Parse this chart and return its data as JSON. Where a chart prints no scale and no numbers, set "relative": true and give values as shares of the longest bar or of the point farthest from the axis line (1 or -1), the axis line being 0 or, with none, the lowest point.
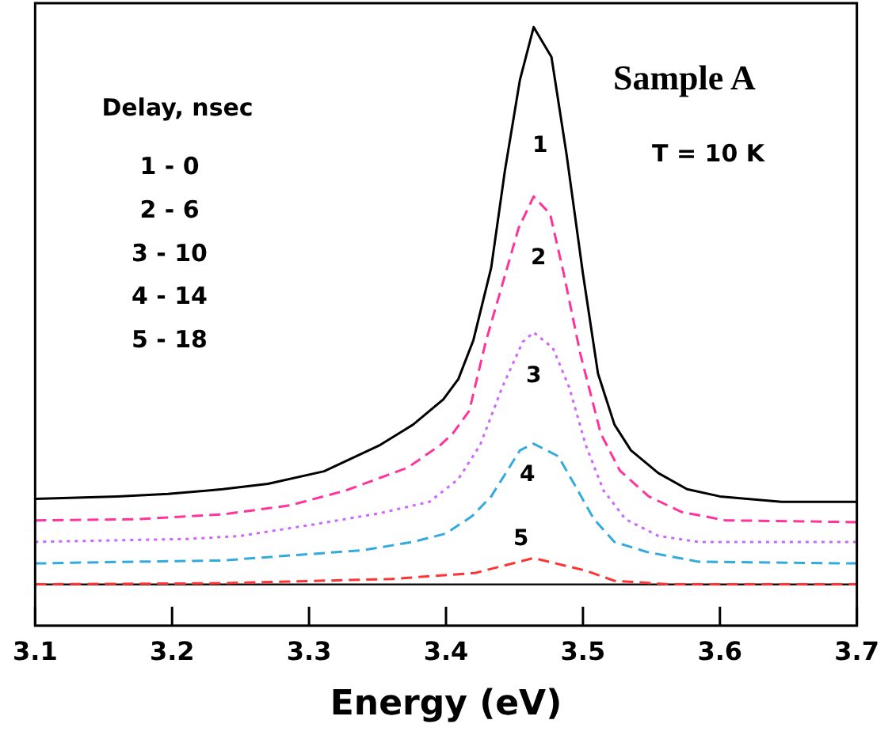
{
  "chart_data": {
    "type": "line",
    "title": "Sample A",
    "xlabel": "Energy (eV)",
    "relative": true,
    "xlim": [
      3.1,
      3.7
    ],
    "xticks": [
      3.1,
      3.2,
      3.3,
      3.4,
      3.5,
      3.6,
      3.7
    ],
    "tick_labels": "x",
    "legend": false,
    "annotations": [
      "Delay, nsec",
      "1 - 0",
      "2 - 6",
      "3 - 10",
      "4 - 14",
      "5 - 18",
      "T = 10 K"
    ],
    "ref_lines": [
      {
        "axis": "y",
        "value": 0.069,
        "color": "#000000"
      }
    ],
    "series": [
      {
        "name": "1",
        "color": "#000000",
        "line_style": "solid",
        "x": [
          3.1,
          3.16,
          3.197,
          3.237,
          3.27,
          3.311,
          3.352,
          3.376,
          3.398,
          3.409,
          3.42,
          3.433,
          3.443,
          3.454,
          3.464,
          3.477,
          3.488,
          3.5,
          3.511,
          3.523,
          3.535,
          3.555,
          3.576,
          3.6,
          3.645,
          3.7
        ],
        "values": [
          0.212,
          0.216,
          0.22,
          0.228,
          0.237,
          0.258,
          0.302,
          0.336,
          0.378,
          0.412,
          0.477,
          0.598,
          0.76,
          0.912,
          1.0,
          0.95,
          0.788,
          0.588,
          0.421,
          0.336,
          0.293,
          0.255,
          0.228,
          0.216,
          0.207,
          0.207
        ]
      },
      {
        "name": "2",
        "color": "#ff3399",
        "line_style": "dashed",
        "x": [
          3.1,
          3.176,
          3.237,
          3.286,
          3.327,
          3.372,
          3.396,
          3.405,
          3.417,
          3.429,
          3.441,
          3.453,
          3.464,
          3.476,
          3.486,
          3.498,
          3.513,
          3.527,
          3.548,
          3.572,
          3.604,
          3.7
        ],
        "values": [
          0.176,
          0.178,
          0.186,
          0.201,
          0.226,
          0.264,
          0.302,
          0.321,
          0.359,
          0.474,
          0.569,
          0.664,
          0.717,
          0.688,
          0.588,
          0.455,
          0.321,
          0.259,
          0.216,
          0.19,
          0.176,
          0.173
        ]
      },
      {
        "name": "3",
        "color": "#cc66ff",
        "line_style": "dotted",
        "x": [
          3.1,
          3.213,
          3.25,
          3.303,
          3.352,
          3.388,
          3.409,
          3.425,
          3.441,
          3.456,
          3.464,
          3.478,
          3.49,
          3.502,
          3.515,
          3.531,
          3.555,
          3.584,
          3.7
        ],
        "values": [
          0.14,
          0.145,
          0.15,
          0.169,
          0.188,
          0.207,
          0.245,
          0.302,
          0.398,
          0.474,
          0.49,
          0.464,
          0.398,
          0.302,
          0.226,
          0.178,
          0.15,
          0.14,
          0.14
        ]
      },
      {
        "name": "4",
        "color": "#33aadd",
        "line_style": "dashed",
        "x": [
          3.1,
          3.176,
          3.237,
          3.278,
          3.339,
          3.376,
          3.4,
          3.419,
          3.433,
          3.454,
          3.464,
          3.482,
          3.494,
          3.508,
          3.523,
          3.547,
          3.584,
          3.7
        ],
        "values": [
          0.104,
          0.107,
          0.109,
          0.116,
          0.126,
          0.14,
          0.154,
          0.183,
          0.216,
          0.293,
          0.304,
          0.283,
          0.235,
          0.178,
          0.14,
          0.123,
          0.107,
          0.104
        ]
      },
      {
        "name": "5",
        "color": "#ff3333",
        "line_style": "dashed",
        "x": [
          3.1,
          3.237,
          3.36,
          3.421,
          3.464,
          3.502,
          3.523,
          3.564,
          3.7
        ],
        "values": [
          0.069,
          0.071,
          0.078,
          0.088,
          0.113,
          0.092,
          0.075,
          0.069,
          0.069
        ]
      }
    ]
  }
}
